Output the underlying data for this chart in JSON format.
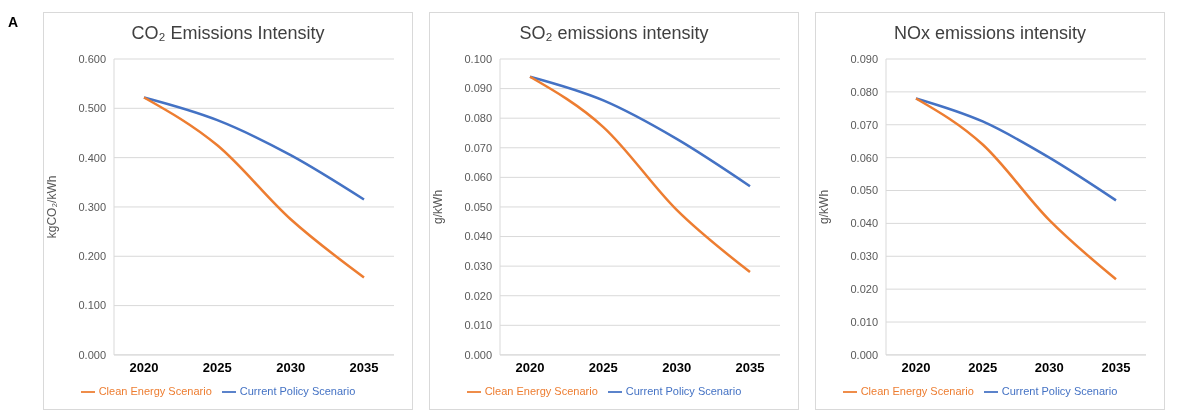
{
  "chart_data": [
    {
      "type": "line",
      "title": "CO₂ Emissions Intensity",
      "ylabel": "kgCO₂/kWh",
      "annotations": [
        "A"
      ],
      "categories": [
        "2020",
        "2025",
        "2030",
        "2035"
      ],
      "series": [
        {
          "name": "Current Policy Scenario",
          "color": "#4472c4",
          "values": [
            0.522,
            0.476,
            0.405,
            0.315
          ]
        },
        {
          "name": "Clean Energy Scenario",
          "color": "#ed7d31",
          "values": [
            0.522,
            0.425,
            0.275,
            0.157
          ]
        }
      ],
      "ylim": [
        0,
        0.6
      ],
      "yticks": [
        {
          "value": 0,
          "label": "0.000"
        },
        {
          "value": 0.1,
          "label": "0.100"
        },
        {
          "value": 0.2,
          "label": "0.200"
        },
        {
          "value": 0.3,
          "label": "0.300"
        },
        {
          "value": 0.4,
          "label": "0.400"
        },
        {
          "value": 0.5,
          "label": "0.500"
        },
        {
          "value": 0.6,
          "label": "0.600"
        }
      ],
      "grid": "y",
      "legend": "bottom",
      "marker": "none",
      "line_style": "solid"
    },
    {
      "type": "line",
      "title": "SO₂ emissions intensity",
      "ylabel": "g/kWh",
      "categories": [
        "2020",
        "2025",
        "2030",
        "2035"
      ],
      "series": [
        {
          "name": "Current Policy Scenario",
          "color": "#4472c4",
          "values": [
            0.094,
            0.086,
            0.073,
            0.057
          ]
        },
        {
          "name": "Clean Energy Scenario",
          "color": "#ed7d31",
          "values": [
            0.094,
            0.077,
            0.049,
            0.028
          ]
        }
      ],
      "ylim": [
        0,
        0.1
      ],
      "yticks": [
        {
          "value": 0,
          "label": "0.000"
        },
        {
          "value": 0.01,
          "label": "0.010"
        },
        {
          "value": 0.02,
          "label": "0.020"
        },
        {
          "value": 0.03,
          "label": "0.030"
        },
        {
          "value": 0.04,
          "label": "0.040"
        },
        {
          "value": 0.05,
          "label": "0.050"
        },
        {
          "value": 0.06,
          "label": "0.060"
        },
        {
          "value": 0.07,
          "label": "0.070"
        },
        {
          "value": 0.08,
          "label": "0.080"
        },
        {
          "value": 0.09,
          "label": "0.090"
        },
        {
          "value": 0.1,
          "label": "0.100"
        }
      ],
      "grid": "y",
      "legend": "bottom",
      "marker": "none",
      "line_style": "solid"
    },
    {
      "type": "line",
      "title": "NOx emissions intensity",
      "ylabel": "g/kWh",
      "categories": [
        "2020",
        "2025",
        "2030",
        "2035"
      ],
      "series": [
        {
          "name": "Current Policy Scenario",
          "color": "#4472c4",
          "values": [
            0.078,
            0.071,
            0.06,
            0.047
          ]
        },
        {
          "name": "Clean Energy Scenario",
          "color": "#ed7d31",
          "values": [
            0.078,
            0.064,
            0.041,
            0.023
          ]
        }
      ],
      "ylim": [
        0,
        0.09
      ],
      "yticks": [
        {
          "value": 0,
          "label": "0.000"
        },
        {
          "value": 0.01,
          "label": "0.010"
        },
        {
          "value": 0.02,
          "label": "0.020"
        },
        {
          "value": 0.03,
          "label": "0.030"
        },
        {
          "value": 0.04,
          "label": "0.040"
        },
        {
          "value": 0.05,
          "label": "0.050"
        },
        {
          "value": 0.06,
          "label": "0.060"
        },
        {
          "value": 0.07,
          "label": "0.070"
        },
        {
          "value": 0.08,
          "label": "0.080"
        },
        {
          "value": 0.09,
          "label": "0.090"
        }
      ],
      "grid": "y",
      "legend": "bottom",
      "marker": "none",
      "line_style": "solid"
    }
  ]
}
